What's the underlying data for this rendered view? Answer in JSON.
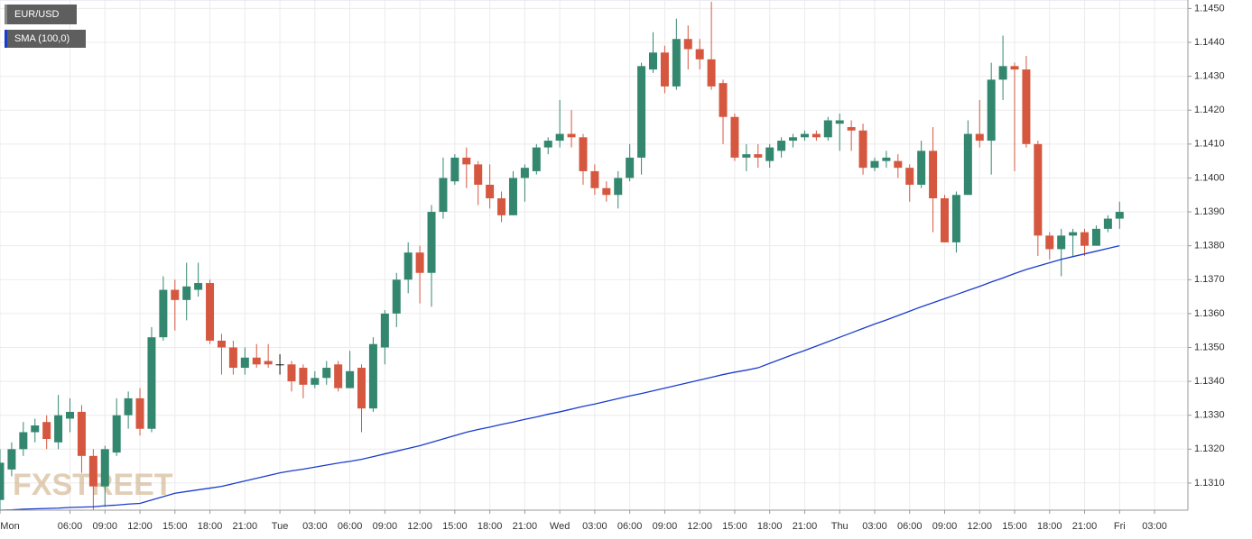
{
  "chart_data": {
    "type": "candlestick",
    "watermark": "FXSTREET",
    "grid": true,
    "xlim": [
      0,
      101.86
    ],
    "ylim": [
      1.1302,
      1.14525
    ],
    "yticks": [
      {
        "value": 1.145,
        "label": "1.1450"
      },
      {
        "value": 1.144,
        "label": "1.1440"
      },
      {
        "value": 1.143,
        "label": "1.1430"
      },
      {
        "value": 1.142,
        "label": "1.1420"
      },
      {
        "value": 1.141,
        "label": "1.1410"
      },
      {
        "value": 1.14,
        "label": "1.1400"
      },
      {
        "value": 1.139,
        "label": "1.1390"
      },
      {
        "value": 1.138,
        "label": "1.1380"
      },
      {
        "value": 1.137,
        "label": "1.1370"
      },
      {
        "value": 1.136,
        "label": "1.1360"
      },
      {
        "value": 1.135,
        "label": "1.1350"
      },
      {
        "value": 1.134,
        "label": "1.1340"
      },
      {
        "value": 1.133,
        "label": "1.1330"
      },
      {
        "value": 1.132,
        "label": "1.1320"
      },
      {
        "value": 1.131,
        "label": "1.1310"
      }
    ],
    "xticks": [
      {
        "value": 0,
        "label": "Mon"
      },
      {
        "value": 6,
        "label": "06:00"
      },
      {
        "value": 9,
        "label": "09:00"
      },
      {
        "value": 12,
        "label": "12:00"
      },
      {
        "value": 15,
        "label": "15:00"
      },
      {
        "value": 18,
        "label": "18:00"
      },
      {
        "value": 21,
        "label": "21:00"
      },
      {
        "value": 24,
        "label": "Tue"
      },
      {
        "value": 27,
        "label": "03:00"
      },
      {
        "value": 30,
        "label": "06:00"
      },
      {
        "value": 33,
        "label": "09:00"
      },
      {
        "value": 36,
        "label": "12:00"
      },
      {
        "value": 39,
        "label": "15:00"
      },
      {
        "value": 42,
        "label": "18:00"
      },
      {
        "value": 45,
        "label": "21:00"
      },
      {
        "value": 48,
        "label": "Wed"
      },
      {
        "value": 51,
        "label": "03:00"
      },
      {
        "value": 54,
        "label": "06:00"
      },
      {
        "value": 57,
        "label": "09:00"
      },
      {
        "value": 60,
        "label": "12:00"
      },
      {
        "value": 63,
        "label": "15:00"
      },
      {
        "value": 66,
        "label": "18:00"
      },
      {
        "value": 69,
        "label": "21:00"
      },
      {
        "value": 72,
        "label": "Thu"
      },
      {
        "value": 75,
        "label": "03:00"
      },
      {
        "value": 78,
        "label": "06:00"
      },
      {
        "value": 81,
        "label": "09:00"
      },
      {
        "value": 84,
        "label": "12:00"
      },
      {
        "value": 87,
        "label": "15:00"
      },
      {
        "value": 90,
        "label": "18:00"
      },
      {
        "value": 93,
        "label": "21:00"
      },
      {
        "value": 96,
        "label": "Fri"
      },
      {
        "value": 99,
        "label": "03:00"
      }
    ],
    "series": [
      {
        "name": "EUR/USD",
        "type": "candlestick",
        "up_color": "#34876f",
        "down_color": "#d6573f",
        "flat_color": "#111111",
        "open": [
          1.1305,
          1.1314,
          1.132,
          1.1325,
          1.1328,
          1.1322,
          1.1329,
          1.1331,
          1.1318,
          1.1309,
          1.1319,
          1.133,
          1.1335,
          1.1326,
          1.1353,
          1.1367,
          1.1364,
          1.1367,
          1.1369,
          1.1352,
          1.135,
          1.1344,
          1.1347,
          1.1346,
          1.1345,
          1.1345,
          1.1344,
          1.1339,
          1.1341,
          1.1345,
          1.1338,
          1.1344,
          1.1332,
          1.135,
          1.136,
          1.137,
          1.1378,
          1.1372,
          1.139,
          1.1399,
          1.1406,
          1.1404,
          1.1398,
          1.1394,
          1.1389,
          1.14,
          1.1402,
          1.1409,
          1.1411,
          1.1413,
          1.1412,
          1.1402,
          1.1397,
          1.1395,
          1.14,
          1.1406,
          1.1432,
          1.1437,
          1.1427,
          1.1441,
          1.1438,
          1.1435,
          1.1428,
          1.1418,
          1.1406,
          1.1407,
          1.1405,
          1.1408,
          1.1411,
          1.1412,
          1.1413,
          1.1412,
          1.1416,
          1.1415,
          1.1414,
          1.1403,
          1.1405,
          1.1405,
          1.1403,
          1.1398,
          1.1408,
          1.1394,
          1.1381,
          1.1395,
          1.1413,
          1.1411,
          1.1429,
          1.1433,
          1.1432,
          1.141,
          1.1383,
          1.1379,
          1.1383,
          1.1384,
          1.138,
          1.1385,
          1.1388
        ],
        "high": [
          1.132,
          1.1322,
          1.1328,
          1.1329,
          1.133,
          1.1336,
          1.1335,
          1.1333,
          1.132,
          1.1321,
          1.1335,
          1.1337,
          1.1338,
          1.1356,
          1.1371,
          1.137,
          1.1375,
          1.1375,
          1.137,
          1.1354,
          1.1352,
          1.135,
          1.1351,
          1.1351,
          1.1348,
          1.1346,
          1.1345,
          1.1343,
          1.1346,
          1.1346,
          1.1349,
          1.1345,
          1.1353,
          1.1361,
          1.1372,
          1.1381,
          1.138,
          1.1392,
          1.1406,
          1.1407,
          1.1409,
          1.1405,
          1.1404,
          1.1396,
          1.1402,
          1.1404,
          1.141,
          1.1412,
          1.1423,
          1.142,
          1.1413,
          1.1404,
          1.1399,
          1.1402,
          1.141,
          1.1434,
          1.1443,
          1.1439,
          1.1447,
          1.1445,
          1.1441,
          1.1452,
          1.1429,
          1.1419,
          1.141,
          1.141,
          1.141,
          1.1412,
          1.1413,
          1.1414,
          1.1414,
          1.1418,
          1.1419,
          1.1417,
          1.1416,
          1.1406,
          1.1408,
          1.1407,
          1.1404,
          1.1411,
          1.1415,
          1.1395,
          1.1396,
          1.1417,
          1.1423,
          1.1434,
          1.1442,
          1.1434,
          1.1436,
          1.1411,
          1.1384,
          1.1385,
          1.1385,
          1.1385,
          1.1386,
          1.1389,
          1.1393
        ],
        "low": [
          1.1302,
          1.1312,
          1.1318,
          1.1322,
          1.132,
          1.132,
          1.1325,
          1.1313,
          1.1302,
          1.1303,
          1.1318,
          1.1326,
          1.1324,
          1.1325,
          1.1352,
          1.1355,
          1.1358,
          1.1365,
          1.1351,
          1.1342,
          1.1342,
          1.1342,
          1.1344,
          1.1344,
          1.1342,
          1.1337,
          1.1335,
          1.1338,
          1.1339,
          1.1337,
          1.1338,
          1.1325,
          1.1331,
          1.1345,
          1.1356,
          1.1366,
          1.1363,
          1.1362,
          1.1388,
          1.1398,
          1.1397,
          1.1392,
          1.1391,
          1.1387,
          1.1389,
          1.1393,
          1.1401,
          1.1407,
          1.1409,
          1.1409,
          1.1398,
          1.1395,
          1.1393,
          1.1391,
          1.1399,
          1.1401,
          1.1431,
          1.1425,
          1.1426,
          1.1432,
          1.1432,
          1.1426,
          1.141,
          1.1405,
          1.1402,
          1.1403,
          1.1403,
          1.1406,
          1.1409,
          1.1411,
          1.1411,
          1.1411,
          1.1408,
          1.1408,
          1.1401,
          1.1402,
          1.1403,
          1.14,
          1.1393,
          1.1397,
          1.1384,
          1.1381,
          1.1378,
          1.1395,
          1.1409,
          1.1401,
          1.1423,
          1.1402,
          1.1409,
          1.1377,
          1.1376,
          1.1371,
          1.1377,
          1.1377,
          1.138,
          1.1384,
          1.1385
        ],
        "close": [
          1.1316,
          1.132,
          1.1325,
          1.1327,
          1.1323,
          1.133,
          1.1331,
          1.1318,
          1.1309,
          1.132,
          1.133,
          1.1335,
          1.1326,
          1.1353,
          1.1367,
          1.1364,
          1.1368,
          1.1369,
          1.1352,
          1.135,
          1.1344,
          1.1347,
          1.1345,
          1.1345,
          1.1345,
          1.134,
          1.1339,
          1.1341,
          1.1344,
          1.1338,
          1.1343,
          1.1332,
          1.1351,
          1.136,
          1.137,
          1.1378,
          1.1372,
          1.139,
          1.14,
          1.1406,
          1.1404,
          1.1398,
          1.1394,
          1.1389,
          1.14,
          1.1403,
          1.1409,
          1.1411,
          1.1413,
          1.1412,
          1.1402,
          1.1397,
          1.1395,
          1.14,
          1.1406,
          1.1433,
          1.1437,
          1.1427,
          1.1441,
          1.1438,
          1.1435,
          1.1427,
          1.1418,
          1.1406,
          1.1407,
          1.1406,
          1.1409,
          1.1411,
          1.1412,
          1.1413,
          1.1412,
          1.1417,
          1.1417,
          1.1414,
          1.1403,
          1.1405,
          1.1406,
          1.1403,
          1.1398,
          1.1408,
          1.1394,
          1.1381,
          1.1395,
          1.1413,
          1.1411,
          1.1429,
          1.1433,
          1.1432,
          1.141,
          1.1383,
          1.1379,
          1.1383,
          1.1384,
          1.138,
          1.1385,
          1.1388,
          1.139
        ]
      },
      {
        "name": "SMA (100,0)",
        "type": "line",
        "color": "#1a3ccc",
        "values": [
          1.1302,
          1.13021,
          1.13023,
          1.13024,
          1.13025,
          1.13026,
          1.13028,
          1.13029,
          1.1303,
          1.13033,
          1.13035,
          1.13038,
          1.1304,
          1.1305,
          1.1306,
          1.1307,
          1.13075,
          1.1308,
          1.13085,
          1.1309,
          1.13098,
          1.13106,
          1.13114,
          1.13122,
          1.1313,
          1.13136,
          1.13141,
          1.13147,
          1.13153,
          1.13159,
          1.13164,
          1.1317,
          1.13178,
          1.13186,
          1.13194,
          1.13202,
          1.1321,
          1.1322,
          1.1323,
          1.1324,
          1.1325,
          1.13258,
          1.13265,
          1.13273,
          1.1328,
          1.13288,
          1.13295,
          1.13303,
          1.1331,
          1.13318,
          1.13326,
          1.13333,
          1.13341,
          1.13349,
          1.13357,
          1.13364,
          1.13372,
          1.1338,
          1.13388,
          1.13396,
          1.13404,
          1.13412,
          1.1342,
          1.13427,
          1.13433,
          1.1344,
          1.13453,
          1.13466,
          1.13479,
          1.13491,
          1.13504,
          1.13517,
          1.1353,
          1.13543,
          1.13556,
          1.13569,
          1.13581,
          1.13594,
          1.13607,
          1.1362,
          1.13632,
          1.13644,
          1.13656,
          1.13668,
          1.1368,
          1.13693,
          1.13705,
          1.13718,
          1.1373,
          1.1374,
          1.1375,
          1.1376,
          1.13768,
          1.13776,
          1.13784,
          1.13792,
          1.138
        ]
      }
    ]
  }
}
